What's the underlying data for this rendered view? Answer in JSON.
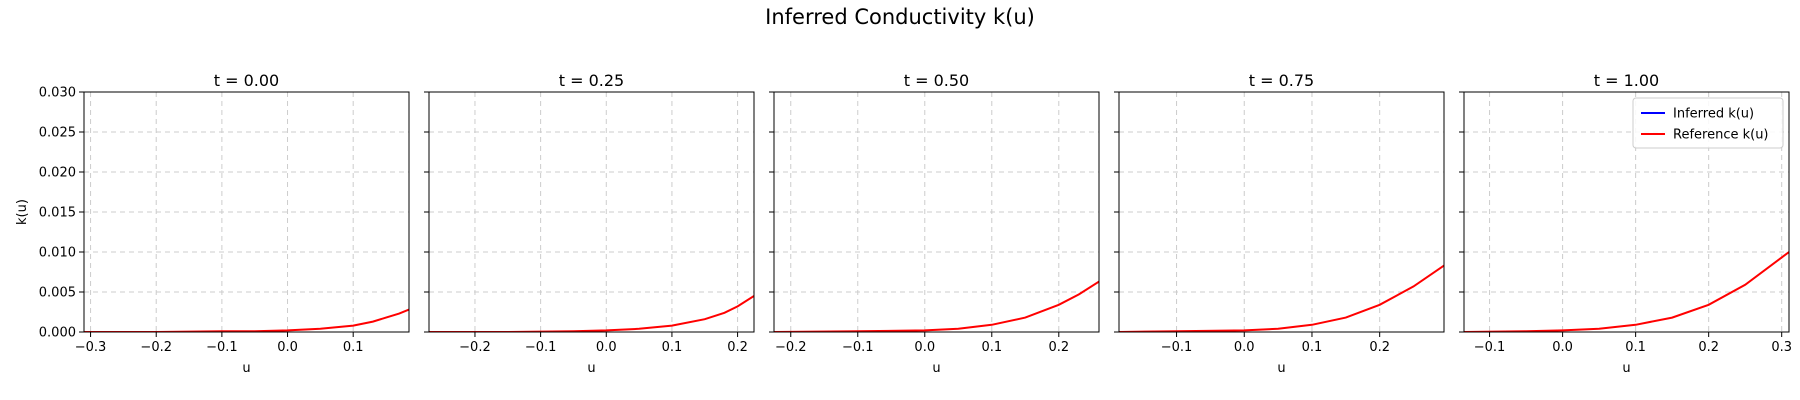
{
  "figure": {
    "title": "Inferred Conductivity k(u)"
  },
  "chart_data": [
    {
      "type": "line",
      "title": "t = 0.00",
      "xlabel": "u",
      "ylabel": "k(u)",
      "xlim": [
        -0.31,
        0.185
      ],
      "ylim": [
        0,
        0.03
      ],
      "xticks": [
        -0.3,
        -0.2,
        -0.1,
        0.0,
        0.1
      ],
      "xtick_labels": [
        "−0.3",
        "−0.2",
        "−0.1",
        "0.0",
        "0.1"
      ],
      "yticks": [
        0,
        0.005,
        0.01,
        0.015,
        0.02,
        0.025,
        0.03
      ],
      "ytick_labels": [
        "0.000",
        "0.005",
        "0.010",
        "0.015",
        "0.020",
        "0.025",
        "0.030"
      ],
      "grid": true,
      "series": [
        {
          "name": "Reference k(u)",
          "color": "#ff0000",
          "x": [
            -0.31,
            -0.2,
            -0.1,
            -0.05,
            0.0,
            0.05,
            0.1,
            0.13,
            0.15,
            0.17,
            0.185
          ],
          "y": [
            0.0,
            0.0,
            0.0001,
            0.0001,
            0.0002,
            0.0004,
            0.0008,
            0.0013,
            0.0018,
            0.0023,
            0.0028
          ]
        }
      ]
    },
    {
      "type": "line",
      "title": "t = 0.25",
      "xlabel": "u",
      "ylabel": "",
      "xlim": [
        -0.27,
        0.225
      ],
      "ylim": [
        0,
        0.03
      ],
      "xticks": [
        -0.2,
        -0.1,
        0.0,
        0.1,
        0.2
      ],
      "xtick_labels": [
        "−0.2",
        "−0.1",
        "0.0",
        "0.1",
        "0.2"
      ],
      "yticks": [
        0,
        0.005,
        0.01,
        0.015,
        0.02,
        0.025,
        0.03
      ],
      "ytick_labels": [],
      "grid": true,
      "series": [
        {
          "name": "Reference k(u)",
          "color": "#ff0000",
          "x": [
            -0.27,
            -0.15,
            -0.05,
            0.0,
            0.05,
            0.1,
            0.15,
            0.18,
            0.2,
            0.225
          ],
          "y": [
            0.0,
            0.0,
            0.0001,
            0.0002,
            0.0004,
            0.0008,
            0.0016,
            0.0024,
            0.0032,
            0.0045
          ]
        }
      ]
    },
    {
      "type": "line",
      "title": "t = 0.50",
      "xlabel": "u",
      "ylabel": "",
      "xlim": [
        -0.225,
        0.26
      ],
      "ylim": [
        0,
        0.03
      ],
      "xticks": [
        -0.2,
        -0.1,
        0.0,
        0.1,
        0.2
      ],
      "xtick_labels": [
        "−0.2",
        "−0.1",
        "0.0",
        "0.1",
        "0.2"
      ],
      "yticks": [
        0,
        0.005,
        0.01,
        0.015,
        0.02,
        0.025,
        0.03
      ],
      "ytick_labels": [],
      "grid": true,
      "series": [
        {
          "name": "Reference k(u)",
          "color": "#ff0000",
          "x": [
            -0.225,
            -0.1,
            0.0,
            0.05,
            0.1,
            0.15,
            0.2,
            0.23,
            0.26
          ],
          "y": [
            0.0,
            0.0001,
            0.0002,
            0.0004,
            0.0009,
            0.0018,
            0.0034,
            0.0047,
            0.0063
          ]
        }
      ]
    },
    {
      "type": "line",
      "title": "t = 0.75",
      "xlabel": "u",
      "ylabel": "",
      "xlim": [
        -0.185,
        0.295
      ],
      "ylim": [
        0,
        0.03
      ],
      "xticks": [
        -0.1,
        0.0,
        0.1,
        0.2
      ],
      "xtick_labels": [
        "−0.1",
        "0.0",
        "0.1",
        "0.2"
      ],
      "yticks": [
        0,
        0.005,
        0.01,
        0.015,
        0.02,
        0.025,
        0.03
      ],
      "ytick_labels": [],
      "grid": true,
      "series": [
        {
          "name": "Reference k(u)",
          "color": "#ff0000",
          "x": [
            -0.185,
            -0.1,
            0.0,
            0.05,
            0.1,
            0.15,
            0.2,
            0.25,
            0.295
          ],
          "y": [
            0.0,
            0.0001,
            0.0002,
            0.0004,
            0.0009,
            0.0018,
            0.0034,
            0.0057,
            0.0083
          ]
        }
      ]
    },
    {
      "type": "line",
      "title": "t = 1.00",
      "xlabel": "u",
      "ylabel": "",
      "xlim": [
        -0.135,
        0.31
      ],
      "ylim": [
        0,
        0.03
      ],
      "xticks": [
        -0.1,
        0.0,
        0.1,
        0.2,
        0.3
      ],
      "xtick_labels": [
        "−0.1",
        "0.0",
        "0.1",
        "0.2",
        "0.3"
      ],
      "yticks": [
        0,
        0.005,
        0.01,
        0.015,
        0.02,
        0.025,
        0.03
      ],
      "ytick_labels": [],
      "grid": true,
      "legend": {
        "position": "upper-right",
        "entries": [
          {
            "label": "Inferred k(u)",
            "color": "#0000ff"
          },
          {
            "label": "Reference k(u)",
            "color": "#ff0000"
          }
        ]
      },
      "series": [
        {
          "name": "Reference k(u)",
          "color": "#ff0000",
          "x": [
            -0.135,
            -0.05,
            0.0,
            0.05,
            0.1,
            0.15,
            0.2,
            0.25,
            0.31
          ],
          "y": [
            0.0,
            0.0001,
            0.0002,
            0.0004,
            0.0009,
            0.0018,
            0.0034,
            0.0059,
            0.01
          ]
        }
      ]
    }
  ]
}
